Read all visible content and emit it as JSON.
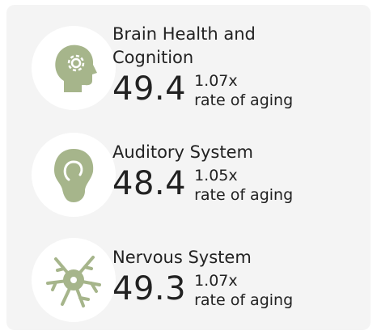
{
  "items": [
    {
      "title": "Brain Health and Cognition",
      "age": "49.4",
      "rate": "1.07x",
      "rate_label": "rate of aging"
    },
    {
      "title": "Auditory System",
      "age": "48.4",
      "rate": "1.05x",
      "rate_label": "rate of aging"
    },
    {
      "title": "Nervous System",
      "age": "49.3",
      "rate": "1.07x",
      "rate_label": "rate of aging"
    }
  ]
}
